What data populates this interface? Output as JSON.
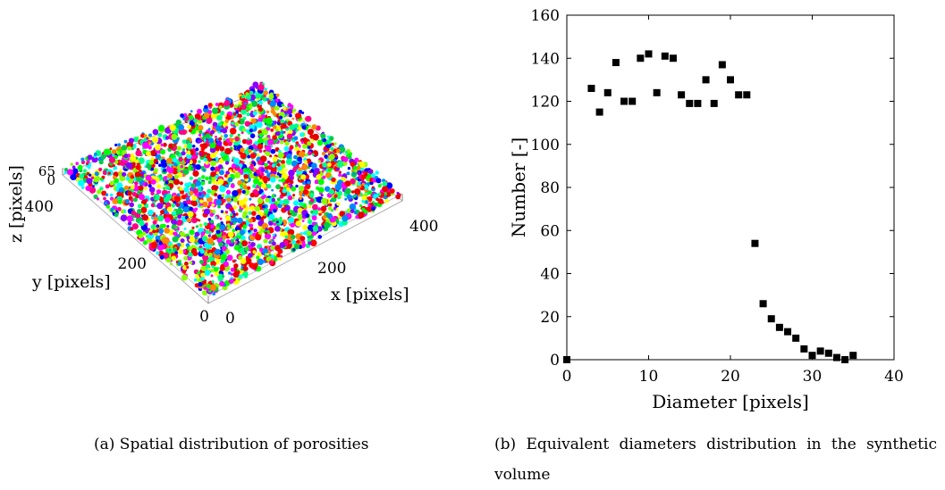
{
  "panel_a": {
    "axis_x_label": "x [pixels]",
    "axis_y_label": "y [pixels]",
    "axis_z_label": "z [pixels]",
    "x_ticks": [
      "0",
      "200",
      "400"
    ],
    "y_ticks": [
      "0",
      "200",
      "400"
    ],
    "z_ticks": [
      "0",
      "65"
    ],
    "palette": [
      "#ff0000",
      "#00ff00",
      "#0000ff",
      "#ff00ff",
      "#00ffff",
      "#ffff00",
      "#ff8800",
      "#8800ff",
      "#00ff88",
      "#ff0088",
      "#88ff00",
      "#0088ff",
      "#e60000",
      "#00cc44"
    ],
    "caption": "(a) Spatial distribution of porosities"
  },
  "chart_data": {
    "type": "scatter",
    "xlabel": "Diameter [pixels]",
    "ylabel": "Number [-]",
    "xlim": [
      0,
      40
    ],
    "ylim": [
      0,
      160
    ],
    "x_ticks": [
      0,
      10,
      20,
      30,
      40
    ],
    "y_ticks": [
      0,
      20,
      40,
      60,
      80,
      100,
      120,
      140,
      160
    ],
    "grid": false,
    "marker": "square",
    "marker_color": "#000000",
    "series": [
      {
        "x": [
          0,
          3,
          4,
          5,
          6,
          7,
          8,
          9,
          10,
          11,
          12,
          13,
          14,
          15,
          16,
          17,
          18,
          19,
          20,
          21,
          22,
          23,
          24,
          25,
          26,
          27,
          28,
          29,
          30,
          31,
          32,
          33,
          34,
          35
        ],
        "y": [
          0,
          126,
          115,
          124,
          138,
          120,
          120,
          140,
          142,
          124,
          141,
          140,
          123,
          119,
          119,
          130,
          119,
          137,
          130,
          123,
          123,
          54,
          26,
          19,
          15,
          13,
          10,
          5,
          2,
          4,
          3,
          1,
          0,
          2
        ]
      }
    ]
  },
  "panel_b": {
    "caption": "(b) Equivalent diameters distribution in the synthetic volume"
  }
}
